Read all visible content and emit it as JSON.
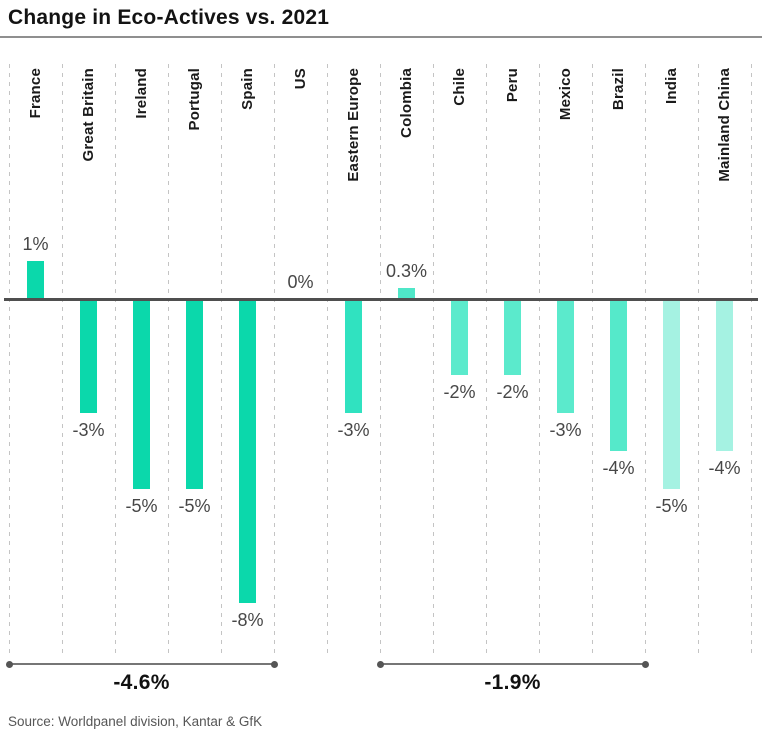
{
  "title": "Change in Eco-Actives vs. 2021",
  "source": "Source: Worldpanel division, Kantar & GfK",
  "colors": {
    "europe_bar": "#0bd8ab",
    "eastern_europe_bar": "#30e2c0",
    "latam_bar": "#5beacc",
    "asia_bar": "#a5f2e2",
    "zero_line": "#4f4f4f",
    "gridline": "#c4c4c4",
    "value_label": "#474747",
    "bracket": "#767676"
  },
  "chart_data": {
    "type": "bar",
    "title": "Change in Eco-Actives vs. 2021",
    "xlabel": "",
    "ylabel": "",
    "baseline_label": "0%",
    "ylim": [
      -9,
      2
    ],
    "grid": "vertical-dashed",
    "legend": "none",
    "categories": [
      "France",
      "Great Britain",
      "Ireland",
      "Portugal",
      "Spain",
      "US",
      "Eastern Europe",
      "Colombia",
      "Chile",
      "Peru",
      "Mexico",
      "Brazil",
      "India",
      "Mainland China"
    ],
    "values": [
      1,
      -3,
      -5,
      -5,
      -8,
      0,
      -3,
      0.3,
      -2,
      -2,
      -3,
      -4,
      -5,
      -4
    ],
    "labels": [
      "1%",
      "-3%",
      "-5%",
      "-5%",
      "-8%",
      "0%",
      "-3%",
      "0.3%",
      "-2%",
      "-2%",
      "-3%",
      "-4%",
      "-5%",
      "-4%"
    ],
    "bar_colors": [
      "#0bd8ab",
      "#0bd8ab",
      "#0bd8ab",
      "#0bd8ab",
      "#0bd8ab",
      "#0bd8ab",
      "#30e2c0",
      "#4fe7c8",
      "#5beacc",
      "#5beacc",
      "#5beacc",
      "#55e9ca",
      "#a5f2e2",
      "#a5f2e2"
    ],
    "groups": [
      {
        "label": "-4.6%",
        "from": "France",
        "to": "Spain",
        "start_index": 0,
        "end_index": 4
      },
      {
        "label": "-1.9%",
        "from": "Colombia",
        "to": "Brazil",
        "start_index": 7,
        "end_index": 11
      }
    ]
  }
}
